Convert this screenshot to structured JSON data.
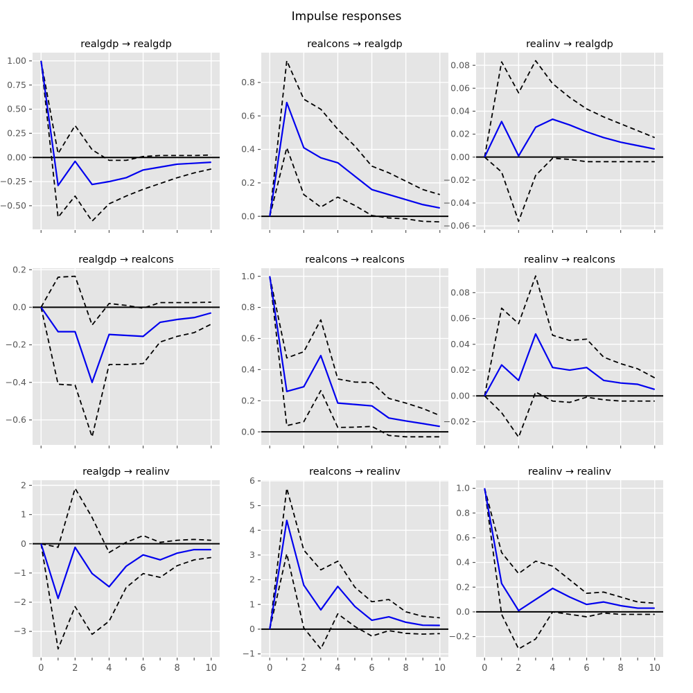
{
  "suptitle": "Impulse responses",
  "style": {
    "response_color": "#0000ee",
    "band_color": "#000000",
    "zero_line_color": "#000000",
    "plot_bg": "#e5e5e5",
    "grid_color": "#ffffff",
    "tick_label_color": "#555555",
    "title_color": "#000000"
  },
  "chart_data": {
    "type": "line",
    "layout": "3x3 grid of subplots",
    "x": [
      0,
      1,
      2,
      3,
      4,
      5,
      6,
      7,
      8,
      9,
      10
    ],
    "xtick_major": [
      0,
      2,
      4,
      6,
      8,
      10
    ],
    "xtick_labels": [
      "0",
      "2",
      "4",
      "6",
      "8",
      "10"
    ],
    "legend": "none",
    "grid": "on",
    "series_meaning": {
      "response": "impulse response (solid blue)",
      "upper": "upper confidence band (dashed black)",
      "lower": "lower confidence band (dashed black)"
    },
    "panels": [
      {
        "title": "realgdp → realgdp",
        "impulse": "realgdp",
        "response_of": "realgdp",
        "row": 0,
        "col": 0,
        "ylim": [
          -0.745,
          1.085
        ],
        "yticks": [
          1.0,
          0.75,
          0.5,
          0.25,
          0.0,
          -0.25,
          -0.5
        ],
        "ytick_labels": [
          "1.00",
          "0.75",
          "0.50",
          "0.25",
          "0.00",
          "−0.25",
          "−0.50"
        ],
        "response": [
          1.0,
          -0.29,
          -0.04,
          -0.28,
          -0.25,
          -0.21,
          -0.13,
          -0.1,
          -0.07,
          -0.06,
          -0.05
        ],
        "upper": [
          1.0,
          0.04,
          0.33,
          0.08,
          -0.03,
          -0.03,
          0.01,
          0.02,
          0.02,
          0.02,
          0.025
        ],
        "lower": [
          1.0,
          -0.62,
          -0.4,
          -0.66,
          -0.48,
          -0.4,
          -0.33,
          -0.27,
          -0.21,
          -0.16,
          -0.12
        ]
      },
      {
        "title": "realcons → realgdp",
        "impulse": "realcons",
        "response_of": "realgdp",
        "row": 0,
        "col": 1,
        "ylim": [
          -0.078,
          0.978
        ],
        "yticks": [
          0.8,
          0.6,
          0.4,
          0.2,
          0.0
        ],
        "ytick_labels": [
          "0.8",
          "0.6",
          "0.4",
          "0.2",
          "0.0"
        ],
        "response": [
          0,
          0.68,
          0.41,
          0.35,
          0.32,
          0.24,
          0.16,
          0.13,
          0.1,
          0.07,
          0.05
        ],
        "upper": [
          0,
          0.93,
          0.7,
          0.64,
          0.52,
          0.42,
          0.3,
          0.26,
          0.21,
          0.16,
          0.13
        ],
        "lower": [
          0,
          0.41,
          0.13,
          0.055,
          0.115,
          0.065,
          0.005,
          -0.01,
          -0.015,
          -0.03,
          -0.033
        ]
      },
      {
        "title": "realinv → realgdp",
        "impulse": "realinv",
        "response_of": "realgdp",
        "row": 0,
        "col": 2,
        "ylim": [
          -0.063,
          0.091
        ],
        "yticks": [
          0.08,
          0.06,
          0.04,
          0.02,
          0.0,
          -0.02,
          -0.04,
          -0.06
        ],
        "ytick_labels": [
          "0.08",
          "0.06",
          "0.04",
          "0.02",
          "0.00",
          "−0.02",
          "−0.04",
          "−0.06"
        ],
        "response": [
          0,
          0.031,
          0.001,
          0.026,
          0.033,
          0.028,
          0.022,
          0.017,
          0.013,
          0.01,
          0.007
        ],
        "upper": [
          0,
          0.083,
          0.056,
          0.084,
          0.064,
          0.052,
          0.042,
          0.035,
          0.029,
          0.023,
          0.017
        ],
        "lower": [
          0,
          -0.013,
          -0.056,
          -0.016,
          -0.001,
          -0.002,
          -0.004,
          -0.004,
          -0.004,
          -0.004,
          -0.004
        ]
      },
      {
        "title": "realgdp → realcons",
        "impulse": "realgdp",
        "response_of": "realcons",
        "row": 1,
        "col": 0,
        "ylim": [
          -0.733,
          0.208
        ],
        "yticks": [
          0.2,
          0.0,
          -0.2,
          -0.4,
          -0.6
        ],
        "ytick_labels": [
          "0.2",
          "0.0",
          "−0.2",
          "−0.4",
          "−0.6"
        ],
        "response": [
          0,
          -0.13,
          -0.13,
          -0.4,
          -0.145,
          -0.15,
          -0.155,
          -0.08,
          -0.065,
          -0.055,
          -0.03
        ],
        "upper": [
          0,
          0.16,
          0.165,
          -0.095,
          0.02,
          0.01,
          -0.005,
          0.025,
          0.025,
          0.025,
          0.027
        ],
        "lower": [
          0,
          -0.41,
          -0.415,
          -0.69,
          -0.305,
          -0.305,
          -0.3,
          -0.185,
          -0.155,
          -0.135,
          -0.09
        ]
      },
      {
        "title": "realcons → realcons",
        "impulse": "realcons",
        "response_of": "realcons",
        "row": 1,
        "col": 1,
        "ylim": [
          -0.084,
          1.052
        ],
        "yticks": [
          1.0,
          0.8,
          0.6,
          0.4,
          0.2,
          0.0
        ],
        "ytick_labels": [
          "1.0",
          "0.8",
          "0.6",
          "0.4",
          "0.2",
          "0.0"
        ],
        "response": [
          1.0,
          0.26,
          0.29,
          0.49,
          0.185,
          0.176,
          0.167,
          0.089,
          0.07,
          0.053,
          0.035
        ],
        "upper": [
          1.0,
          0.475,
          0.515,
          0.72,
          0.34,
          0.32,
          0.317,
          0.215,
          0.185,
          0.15,
          0.105
        ],
        "lower": [
          1.0,
          0.04,
          0.065,
          0.265,
          0.028,
          0.03,
          0.035,
          -0.023,
          -0.032,
          -0.032,
          -0.032
        ]
      },
      {
        "title": "realinv → realcons",
        "impulse": "realinv",
        "response_of": "realcons",
        "row": 1,
        "col": 2,
        "ylim": [
          -0.038,
          0.099
        ],
        "yticks": [
          0.08,
          0.06,
          0.04,
          0.02,
          0.0,
          -0.02
        ],
        "ytick_labels": [
          "0.08",
          "0.06",
          "0.04",
          "0.02",
          "0.00",
          "−0.02"
        ],
        "response": [
          0,
          0.024,
          0.012,
          0.048,
          0.022,
          0.02,
          0.022,
          0.012,
          0.01,
          0.009,
          0.005
        ],
        "upper": [
          0,
          0.068,
          0.056,
          0.093,
          0.047,
          0.043,
          0.044,
          0.03,
          0.025,
          0.021,
          0.014
        ],
        "lower": [
          0,
          -0.013,
          -0.032,
          0.003,
          -0.004,
          -0.005,
          -0.001,
          -0.003,
          -0.004,
          -0.004,
          -0.004
        ]
      },
      {
        "title": "realgdp → realinv",
        "impulse": "realgdp",
        "response_of": "realinv",
        "row": 2,
        "col": 0,
        "ylim": [
          -3.875,
          2.175
        ],
        "yticks": [
          2,
          1,
          0,
          -1,
          -2,
          -3
        ],
        "ytick_labels": [
          "2",
          "1",
          "0",
          "−1",
          "−2",
          "−3"
        ],
        "response": [
          0,
          -1.87,
          -0.12,
          -1.02,
          -1.47,
          -0.77,
          -0.38,
          -0.55,
          -0.32,
          -0.2,
          -0.2
        ],
        "upper": [
          0,
          -0.12,
          1.9,
          0.9,
          -0.3,
          0.05,
          0.28,
          0.05,
          0.12,
          0.15,
          0.12
        ],
        "lower": [
          0,
          -3.6,
          -2.15,
          -3.1,
          -2.65,
          -1.5,
          -1.02,
          -1.15,
          -0.75,
          -0.55,
          -0.47
        ]
      },
      {
        "title": "realcons → realinv",
        "impulse": "realcons",
        "response_of": "realinv",
        "row": 2,
        "col": 1,
        "ylim": [
          -1.125,
          6.025
        ],
        "yticks": [
          6,
          5,
          4,
          3,
          2,
          1,
          0,
          -1
        ],
        "ytick_labels": [
          "6",
          "5",
          "4",
          "3",
          "2",
          "1",
          "0",
          "−1"
        ],
        "response": [
          0,
          4.4,
          1.78,
          0.78,
          1.73,
          0.92,
          0.36,
          0.5,
          0.28,
          0.16,
          0.15
        ],
        "upper": [
          0,
          5.7,
          3.2,
          2.4,
          2.75,
          1.7,
          1.11,
          1.2,
          0.7,
          0.52,
          0.46
        ],
        "lower": [
          0,
          3.05,
          0.05,
          -0.8,
          0.62,
          0.11,
          -0.28,
          -0.06,
          -0.17,
          -0.2,
          -0.18
        ]
      },
      {
        "title": "realinv → realinv",
        "impulse": "realinv",
        "response_of": "realinv",
        "row": 2,
        "col": 2,
        "ylim": [
          -0.365,
          1.065
        ],
        "yticks": [
          1.0,
          0.8,
          0.6,
          0.4,
          0.2,
          0.0,
          -0.2
        ],
        "ytick_labels": [
          "1.0",
          "0.8",
          "0.6",
          "0.4",
          "0.2",
          "0.0",
          "−0.2"
        ],
        "response": [
          1.0,
          0.23,
          0.01,
          0.1,
          0.19,
          0.12,
          0.06,
          0.08,
          0.05,
          0.03,
          0.03
        ],
        "upper": [
          1.0,
          0.48,
          0.31,
          0.41,
          0.37,
          0.26,
          0.15,
          0.16,
          0.12,
          0.08,
          0.07
        ],
        "lower": [
          1.0,
          -0.02,
          -0.3,
          -0.22,
          0.0,
          -0.02,
          -0.04,
          -0.01,
          -0.02,
          -0.02,
          -0.02
        ]
      }
    ]
  }
}
